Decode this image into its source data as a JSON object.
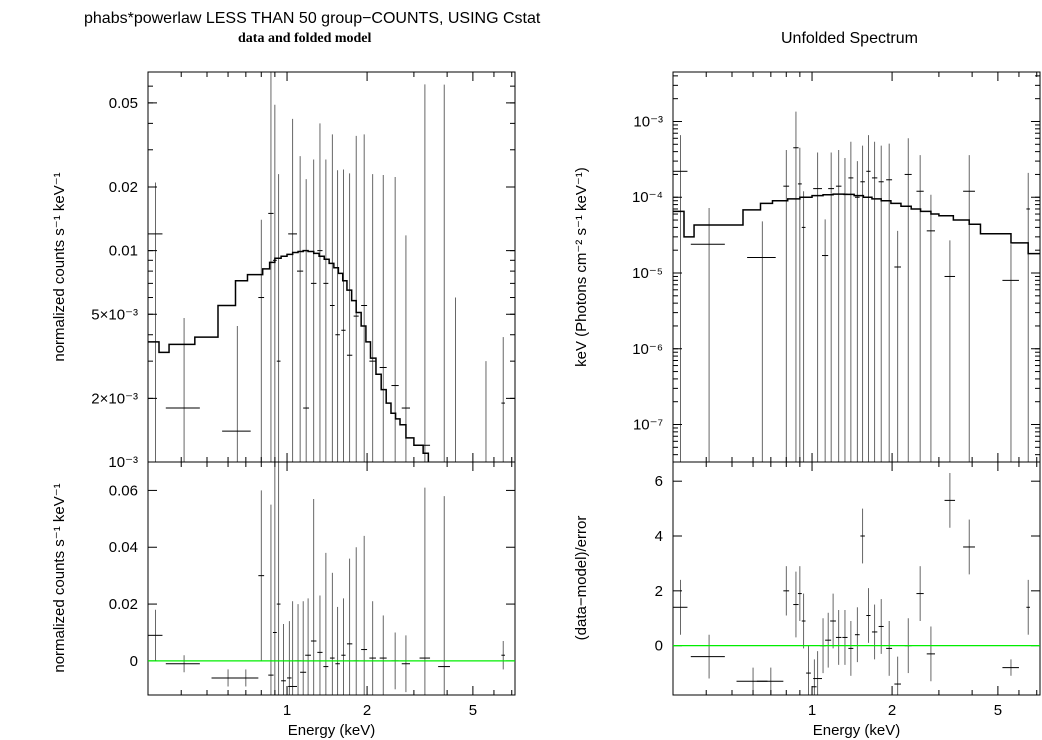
{
  "header": {
    "title": "phabs*powerlaw LESS THAN 50 group−COUNTS, USING Cstat",
    "subtitle": "data and folded model",
    "right_title": "Unfolded Spectrum"
  },
  "colors": {
    "data": "#000000",
    "model": "#000000",
    "zero_line": "#00ee00"
  },
  "chart_data": [
    {
      "id": "left-top",
      "type": "line",
      "title": "",
      "xlabel": "",
      "ylabel": "normalized counts s⁻¹ keV⁻¹",
      "xscale": "log",
      "yscale": "log",
      "xlim": [
        0.3,
        7.2
      ],
      "ylim": [
        0.001,
        0.07
      ],
      "yticks": [
        0.002,
        0.005,
        0.01,
        0.02,
        0.05
      ],
      "ytick_labels": [
        "2×10⁻³",
        "5×10⁻³",
        "0.01",
        "0.02",
        "0.05"
      ],
      "corner_label": "10⁻³",
      "xticks": [
        1,
        2,
        5
      ],
      "xtick_labels": [],
      "model": {
        "x": [
          0.3,
          0.33,
          0.36,
          0.45,
          0.55,
          0.64,
          0.71,
          0.81,
          0.86,
          0.9,
          0.95,
          1.0,
          1.05,
          1.1,
          1.15,
          1.2,
          1.26,
          1.32,
          1.38,
          1.44,
          1.5,
          1.56,
          1.62,
          1.68,
          1.75,
          1.82,
          1.9,
          1.98,
          2.06,
          2.16,
          2.26,
          2.36,
          2.46,
          2.56,
          2.66,
          2.8,
          3.0,
          3.25,
          3.4
        ],
        "y": [
          0.0037,
          0.0033,
          0.0036,
          0.0039,
          0.0055,
          0.0072,
          0.0077,
          0.0082,
          0.0088,
          0.0092,
          0.0094,
          0.0096,
          0.0098,
          0.0099,
          0.01,
          0.0099,
          0.0097,
          0.0094,
          0.0091,
          0.0087,
          0.0083,
          0.0078,
          0.0072,
          0.0065,
          0.0058,
          0.0051,
          0.0044,
          0.0037,
          0.0031,
          0.0026,
          0.0022,
          0.0019,
          0.0017,
          0.0016,
          0.0015,
          0.0013,
          0.0012,
          0.0011,
          0.001
        ]
      },
      "points": {
        "x": [
          0.32,
          0.41,
          0.65,
          0.8,
          0.87,
          0.9,
          0.93,
          1.05,
          1.12,
          1.18,
          1.26,
          1.33,
          1.4,
          1.48,
          1.55,
          1.63,
          1.72,
          1.82,
          1.95,
          2.1,
          2.3,
          2.55,
          2.8,
          3.3,
          3.9,
          4.3,
          5.6,
          6.5
        ],
        "y": [
          0.012,
          0.0018,
          0.0014,
          0.006,
          0.015,
          0.009,
          0.003,
          0.012,
          0.008,
          0.0018,
          0.007,
          0.01,
          0.007,
          0.0055,
          0.004,
          0.0042,
          0.0032,
          0.0049,
          0.0055,
          0.003,
          0.0028,
          0.0023,
          0.0018,
          0.0012,
          0.001,
          0.001,
          0.001,
          0.0019
        ],
        "xerr": [
          0.02,
          0.06,
          0.08,
          0.02,
          0.02,
          0.015,
          0.015,
          0.04,
          0.03,
          0.03,
          0.03,
          0.03,
          0.03,
          0.03,
          0.03,
          0.03,
          0.04,
          0.04,
          0.05,
          0.06,
          0.07,
          0.08,
          0.1,
          0.15,
          0.2,
          0.2,
          0.4,
          0.1
        ],
        "yerr": [
          0.009,
          0.003,
          0.003,
          0.008,
          0.06,
          0.04,
          0.02,
          0.03,
          0.02,
          0.02,
          0.02,
          0.03,
          0.02,
          0.03,
          0.02,
          0.02,
          0.02,
          0.03,
          0.03,
          0.02,
          0.02,
          0.02,
          0.01,
          0.06,
          0.06,
          0.005,
          0.002,
          0.002
        ]
      }
    },
    {
      "id": "left-bottom",
      "type": "scatter",
      "title": "",
      "xlabel": "Energy (keV)",
      "ylabel": "normalized counts s⁻¹ keV⁻¹",
      "xscale": "log",
      "yscale": "linear",
      "xlim": [
        0.3,
        7.2
      ],
      "ylim": [
        -0.012,
        0.07
      ],
      "yticks": [
        0,
        0.02,
        0.04,
        0.06
      ],
      "ytick_labels": [
        "0",
        "0.02",
        "0.04",
        "0.06"
      ],
      "xticks": [
        1,
        2,
        5
      ],
      "xtick_labels": [
        "1",
        "2",
        "5"
      ],
      "zero_line": 0,
      "points": {
        "x": [
          0.32,
          0.41,
          0.6,
          0.7,
          0.8,
          0.87,
          0.9,
          0.93,
          0.97,
          1.02,
          1.05,
          1.1,
          1.15,
          1.2,
          1.26,
          1.33,
          1.4,
          1.48,
          1.55,
          1.63,
          1.72,
          1.82,
          1.95,
          2.1,
          2.3,
          2.55,
          2.8,
          3.3,
          3.9,
          6.5
        ],
        "y": [
          0.009,
          -0.001,
          -0.006,
          -0.006,
          0.03,
          -0.005,
          0.01,
          0.02,
          -0.007,
          -0.006,
          -0.009,
          0.0,
          -0.004,
          0.002,
          0.007,
          0.003,
          -0.002,
          0.001,
          -0.001,
          0.002,
          0.006,
          0.0,
          0.004,
          0.001,
          0.001,
          0.0,
          -0.001,
          0.001,
          -0.002,
          0.002
        ],
        "xerr": [
          0.02,
          0.06,
          0.08,
          0.08,
          0.02,
          0.02,
          0.015,
          0.015,
          0.02,
          0.02,
          0.04,
          0.03,
          0.03,
          0.03,
          0.03,
          0.03,
          0.03,
          0.03,
          0.03,
          0.03,
          0.04,
          0.04,
          0.05,
          0.06,
          0.07,
          0.08,
          0.1,
          0.15,
          0.2,
          0.1
        ],
        "yerr": [
          0.009,
          0.003,
          0.003,
          0.003,
          0.03,
          0.06,
          0.06,
          0.05,
          0.02,
          0.02,
          0.03,
          0.02,
          0.025,
          0.02,
          0.05,
          0.02,
          0.04,
          0.03,
          0.02,
          0.02,
          0.03,
          0.04,
          0.04,
          0.02,
          0.015,
          0.01,
          0.01,
          0.06,
          0.06,
          0.005
        ]
      }
    },
    {
      "id": "right-top",
      "type": "line",
      "title": "Unfolded Spectrum",
      "xlabel": "",
      "ylabel": "keV (Photons cm⁻² s⁻¹ keV⁻¹)",
      "xscale": "log",
      "yscale": "log",
      "xlim": [
        0.3,
        7.2
      ],
      "ylim": [
        3.2e-08,
        0.0045
      ],
      "yticks": [
        1e-07,
        1e-06,
        1e-05,
        0.0001,
        0.001
      ],
      "ytick_labels": [
        "10⁻⁷",
        "10⁻⁶",
        "10⁻⁵",
        "10⁻⁴",
        "10⁻³"
      ],
      "xticks": [
        1,
        2,
        5
      ],
      "xtick_labels": [],
      "model": {
        "x": [
          0.3,
          0.33,
          0.36,
          0.45,
          0.55,
          0.64,
          0.71,
          0.81,
          0.9,
          1.0,
          1.1,
          1.2,
          1.32,
          1.44,
          1.56,
          1.68,
          1.82,
          1.98,
          2.16,
          2.36,
          2.56,
          2.8,
          3.0,
          3.4,
          3.9,
          4.3,
          5.6,
          6.5,
          7.2
        ],
        "y": [
          6.5e-05,
          3e-05,
          4.3e-05,
          4.3e-05,
          6.8e-05,
          8.3e-05,
          9e-05,
          9.5e-05,
          0.0001,
          0.000105,
          0.000108,
          0.00011,
          0.000109,
          0.000105,
          0.0001,
          9.5e-05,
          9e-05,
          8.3e-05,
          7.6e-05,
          7e-05,
          6.5e-05,
          6e-05,
          5.7e-05,
          5e-05,
          4.4e-05,
          3.3e-05,
          2.5e-05,
          1.8e-05,
          1.8e-05
        ]
      },
      "points": {
        "x": [
          0.32,
          0.41,
          0.65,
          0.8,
          0.87,
          0.9,
          0.93,
          1.05,
          1.12,
          1.18,
          1.26,
          1.33,
          1.4,
          1.48,
          1.55,
          1.63,
          1.72,
          1.82,
          1.95,
          2.1,
          2.3,
          2.55,
          2.8,
          3.3,
          3.9,
          5.6,
          6.5
        ],
        "y": [
          0.00022,
          2.4e-05,
          1.6e-05,
          0.00014,
          0.00045,
          0.00015,
          4e-05,
          0.00013,
          1.7e-05,
          0.00013,
          0.00014,
          0.00011,
          0.00018,
          0.0001,
          0.00016,
          0.00022,
          0.00018,
          0.00016,
          0.00017,
          1.2e-05,
          0.0002,
          0.00012,
          3.6e-05,
          9e-06,
          0.00012,
          8e-06,
          7e-05
        ],
        "xerr": [
          0.02,
          0.06,
          0.08,
          0.02,
          0.02,
          0.015,
          0.015,
          0.04,
          0.03,
          0.03,
          0.03,
          0.03,
          0.03,
          0.03,
          0.03,
          0.03,
          0.04,
          0.04,
          0.05,
          0.06,
          0.07,
          0.08,
          0.1,
          0.15,
          0.2,
          0.4,
          0.1
        ],
        "yerr_up_factor": 3,
        "yerr_down_to_axis": true
      }
    },
    {
      "id": "right-bottom",
      "type": "scatter",
      "title": "",
      "xlabel": "Energy (keV)",
      "ylabel": "(data−model)/error",
      "xscale": "log",
      "yscale": "linear",
      "xlim": [
        0.3,
        7.2
      ],
      "ylim": [
        -1.8,
        6.7
      ],
      "yticks": [
        0,
        2,
        4,
        6
      ],
      "ytick_labels": [
        "0",
        "2",
        "4",
        "6"
      ],
      "xticks": [
        1,
        2,
        5
      ],
      "xtick_labels": [
        "1",
        "2",
        "5"
      ],
      "zero_line": 0,
      "points": {
        "x": [
          0.32,
          0.41,
          0.6,
          0.7,
          0.8,
          0.87,
          0.9,
          0.93,
          0.97,
          1.02,
          1.05,
          1.1,
          1.15,
          1.2,
          1.26,
          1.33,
          1.4,
          1.48,
          1.55,
          1.63,
          1.72,
          1.82,
          1.95,
          2.1,
          2.3,
          2.55,
          2.8,
          3.3,
          3.9,
          5.6,
          6.5
        ],
        "y": [
          1.4,
          -0.4,
          -1.3,
          -1.3,
          2.0,
          1.5,
          1.9,
          0.9,
          -1.0,
          -1.5,
          -1.2,
          0.0,
          0.2,
          0.9,
          0.3,
          0.3,
          -0.1,
          0.4,
          4.0,
          1.1,
          0.5,
          0.7,
          -0.1,
          -1.4,
          0.0,
          1.9,
          -0.3,
          5.3,
          3.6,
          -0.8,
          1.4
        ],
        "xerr": [
          0.02,
          0.06,
          0.08,
          0.08,
          0.02,
          0.02,
          0.015,
          0.015,
          0.02,
          0.02,
          0.04,
          0.03,
          0.03,
          0.03,
          0.03,
          0.03,
          0.03,
          0.03,
          0.03,
          0.03,
          0.04,
          0.04,
          0.05,
          0.06,
          0.07,
          0.08,
          0.1,
          0.15,
          0.2,
          0.4,
          0.1
        ],
        "yerr": [
          1.0,
          0.8,
          0.5,
          0.5,
          0.9,
          1.2,
          1.0,
          1.0,
          1.0,
          1.0,
          1.0,
          1.0,
          1.0,
          1.0,
          1.0,
          1.0,
          1.0,
          1.0,
          1.0,
          1.0,
          1.0,
          1.0,
          1.0,
          1.0,
          1.0,
          1.0,
          1.0,
          1.0,
          1.0,
          0.3,
          1.0
        ]
      }
    }
  ]
}
